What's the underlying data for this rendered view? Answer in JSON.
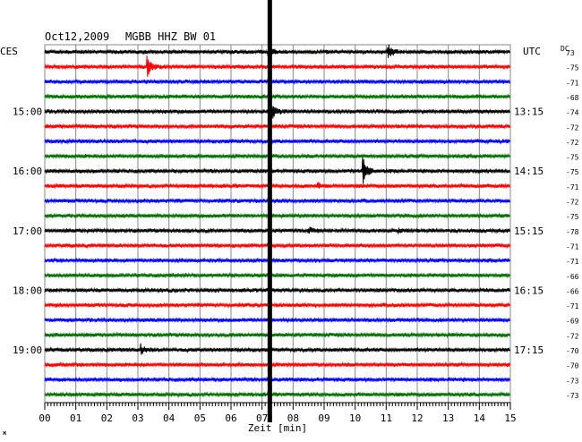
{
  "header": {
    "date": "Oct12,2009",
    "station": "MGBB HHZ BW 01",
    "left_zone": "CES",
    "right_zone": "UTC",
    "dc_label": "DC"
  },
  "colors": {
    "trace_cycle": [
      "#000000",
      "#ff0000",
      "#0000ff",
      "#007000"
    ],
    "grid": "#888888",
    "marker": "#000000"
  },
  "chart_data": {
    "type": "helicorder",
    "xlabel": "Zeit [min]",
    "xlim": [
      0,
      15
    ],
    "x_ticks": [
      "00",
      "01",
      "02",
      "03",
      "04",
      "05",
      "06",
      "07",
      "08",
      "09",
      "10",
      "11",
      "12",
      "13",
      "14",
      "15"
    ],
    "rows": 24,
    "left_time_labels": [
      {
        "row": 4,
        "label": "15:00"
      },
      {
        "row": 8,
        "label": "16:00"
      },
      {
        "row": 12,
        "label": "17:00"
      },
      {
        "row": 16,
        "label": "18:00"
      },
      {
        "row": 20,
        "label": "19:00"
      }
    ],
    "right_time_labels": [
      {
        "row": 4,
        "label": "13:15"
      },
      {
        "row": 8,
        "label": "14:15"
      },
      {
        "row": 12,
        "label": "15:15"
      },
      {
        "row": 16,
        "label": "16:15"
      },
      {
        "row": 20,
        "label": "17:15"
      }
    ],
    "dc_offsets": [
      "73",
      "-75",
      "-71",
      "-68",
      "-74",
      "-72",
      "-72",
      "-75",
      "-75",
      "-71",
      "-72",
      "-75",
      "-78",
      "-71",
      "-71",
      "-66",
      "-66",
      "-71",
      "-69",
      "-72",
      "-70",
      "-70",
      "-73",
      "-73"
    ],
    "marker_minute": 7.25,
    "events": [
      {
        "row": 0,
        "minute": 7.2,
        "amplitude": 1.6
      },
      {
        "row": 0,
        "minute": 11.05,
        "amplitude": 1.8
      },
      {
        "row": 1,
        "minute": 3.3,
        "amplitude": 2.2
      },
      {
        "row": 4,
        "minute": 7.3,
        "amplitude": 2.0
      },
      {
        "row": 8,
        "minute": 10.25,
        "amplitude": 3.2
      },
      {
        "row": 9,
        "minute": 8.8,
        "amplitude": 0.5
      },
      {
        "row": 12,
        "minute": 8.5,
        "amplitude": 0.6
      },
      {
        "row": 12,
        "minute": 11.4,
        "amplitude": 0.5
      },
      {
        "row": 20,
        "minute": 3.1,
        "amplitude": 1.0
      }
    ]
  }
}
